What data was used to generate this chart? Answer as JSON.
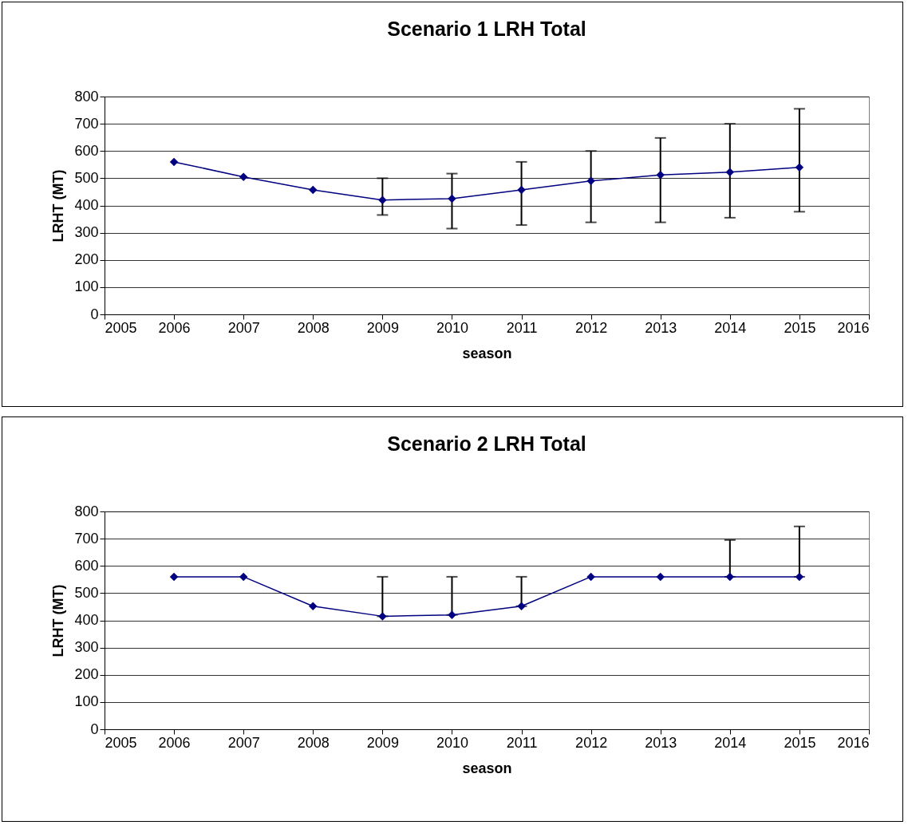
{
  "chart_data": [
    {
      "type": "line",
      "title": "Scenario 1 LRH Total",
      "xlabel": "season",
      "ylabel": "LRHT (MT)",
      "x": [
        2006,
        2007,
        2008,
        2009,
        2010,
        2011,
        2012,
        2013,
        2014,
        2015
      ],
      "series": [
        {
          "color": "#000080",
          "values": [
            560,
            505,
            457,
            420,
            425,
            457,
            490,
            512,
            522,
            540
          ],
          "errors": [
            null,
            null,
            null,
            [
              365,
              500
            ],
            [
              315,
              517
            ],
            [
              328,
              560
            ],
            [
              338,
              600
            ],
            [
              338,
              648
            ],
            [
              355,
              700
            ],
            [
              377,
              755
            ]
          ]
        }
      ],
      "xlim": [
        2005,
        2016
      ],
      "xticks": [
        2005,
        2006,
        2007,
        2008,
        2009,
        2010,
        2011,
        2012,
        2013,
        2014,
        2015,
        2016
      ],
      "ylim": [
        0,
        800
      ],
      "yticks": [
        0,
        100,
        200,
        300,
        400,
        500,
        600,
        700,
        800
      ],
      "grid": "y",
      "marker": "diamond"
    },
    {
      "type": "line",
      "title": "Scenario 2 LRH Total",
      "xlabel": "season",
      "ylabel": "LRHT (MT)",
      "x": [
        2006,
        2007,
        2008,
        2009,
        2010,
        2011,
        2012,
        2013,
        2014,
        2015
      ],
      "series": [
        {
          "color": "#000080",
          "values": [
            560,
            560,
            452,
            415,
            420,
            452,
            560,
            560,
            560,
            560
          ],
          "errors": [
            null,
            null,
            null,
            [
              415,
              560
            ],
            [
              420,
              560
            ],
            [
              452,
              560
            ],
            null,
            null,
            [
              560,
              695
            ],
            [
              560,
              745
            ]
          ]
        }
      ],
      "xlim": [
        2005,
        2016
      ],
      "xticks": [
        2005,
        2006,
        2007,
        2008,
        2009,
        2010,
        2011,
        2012,
        2013,
        2014,
        2015,
        2016
      ],
      "ylim": [
        0,
        800
      ],
      "yticks": [
        0,
        100,
        200,
        300,
        400,
        500,
        600,
        700,
        800
      ],
      "grid": "y",
      "marker": "diamond"
    }
  ]
}
